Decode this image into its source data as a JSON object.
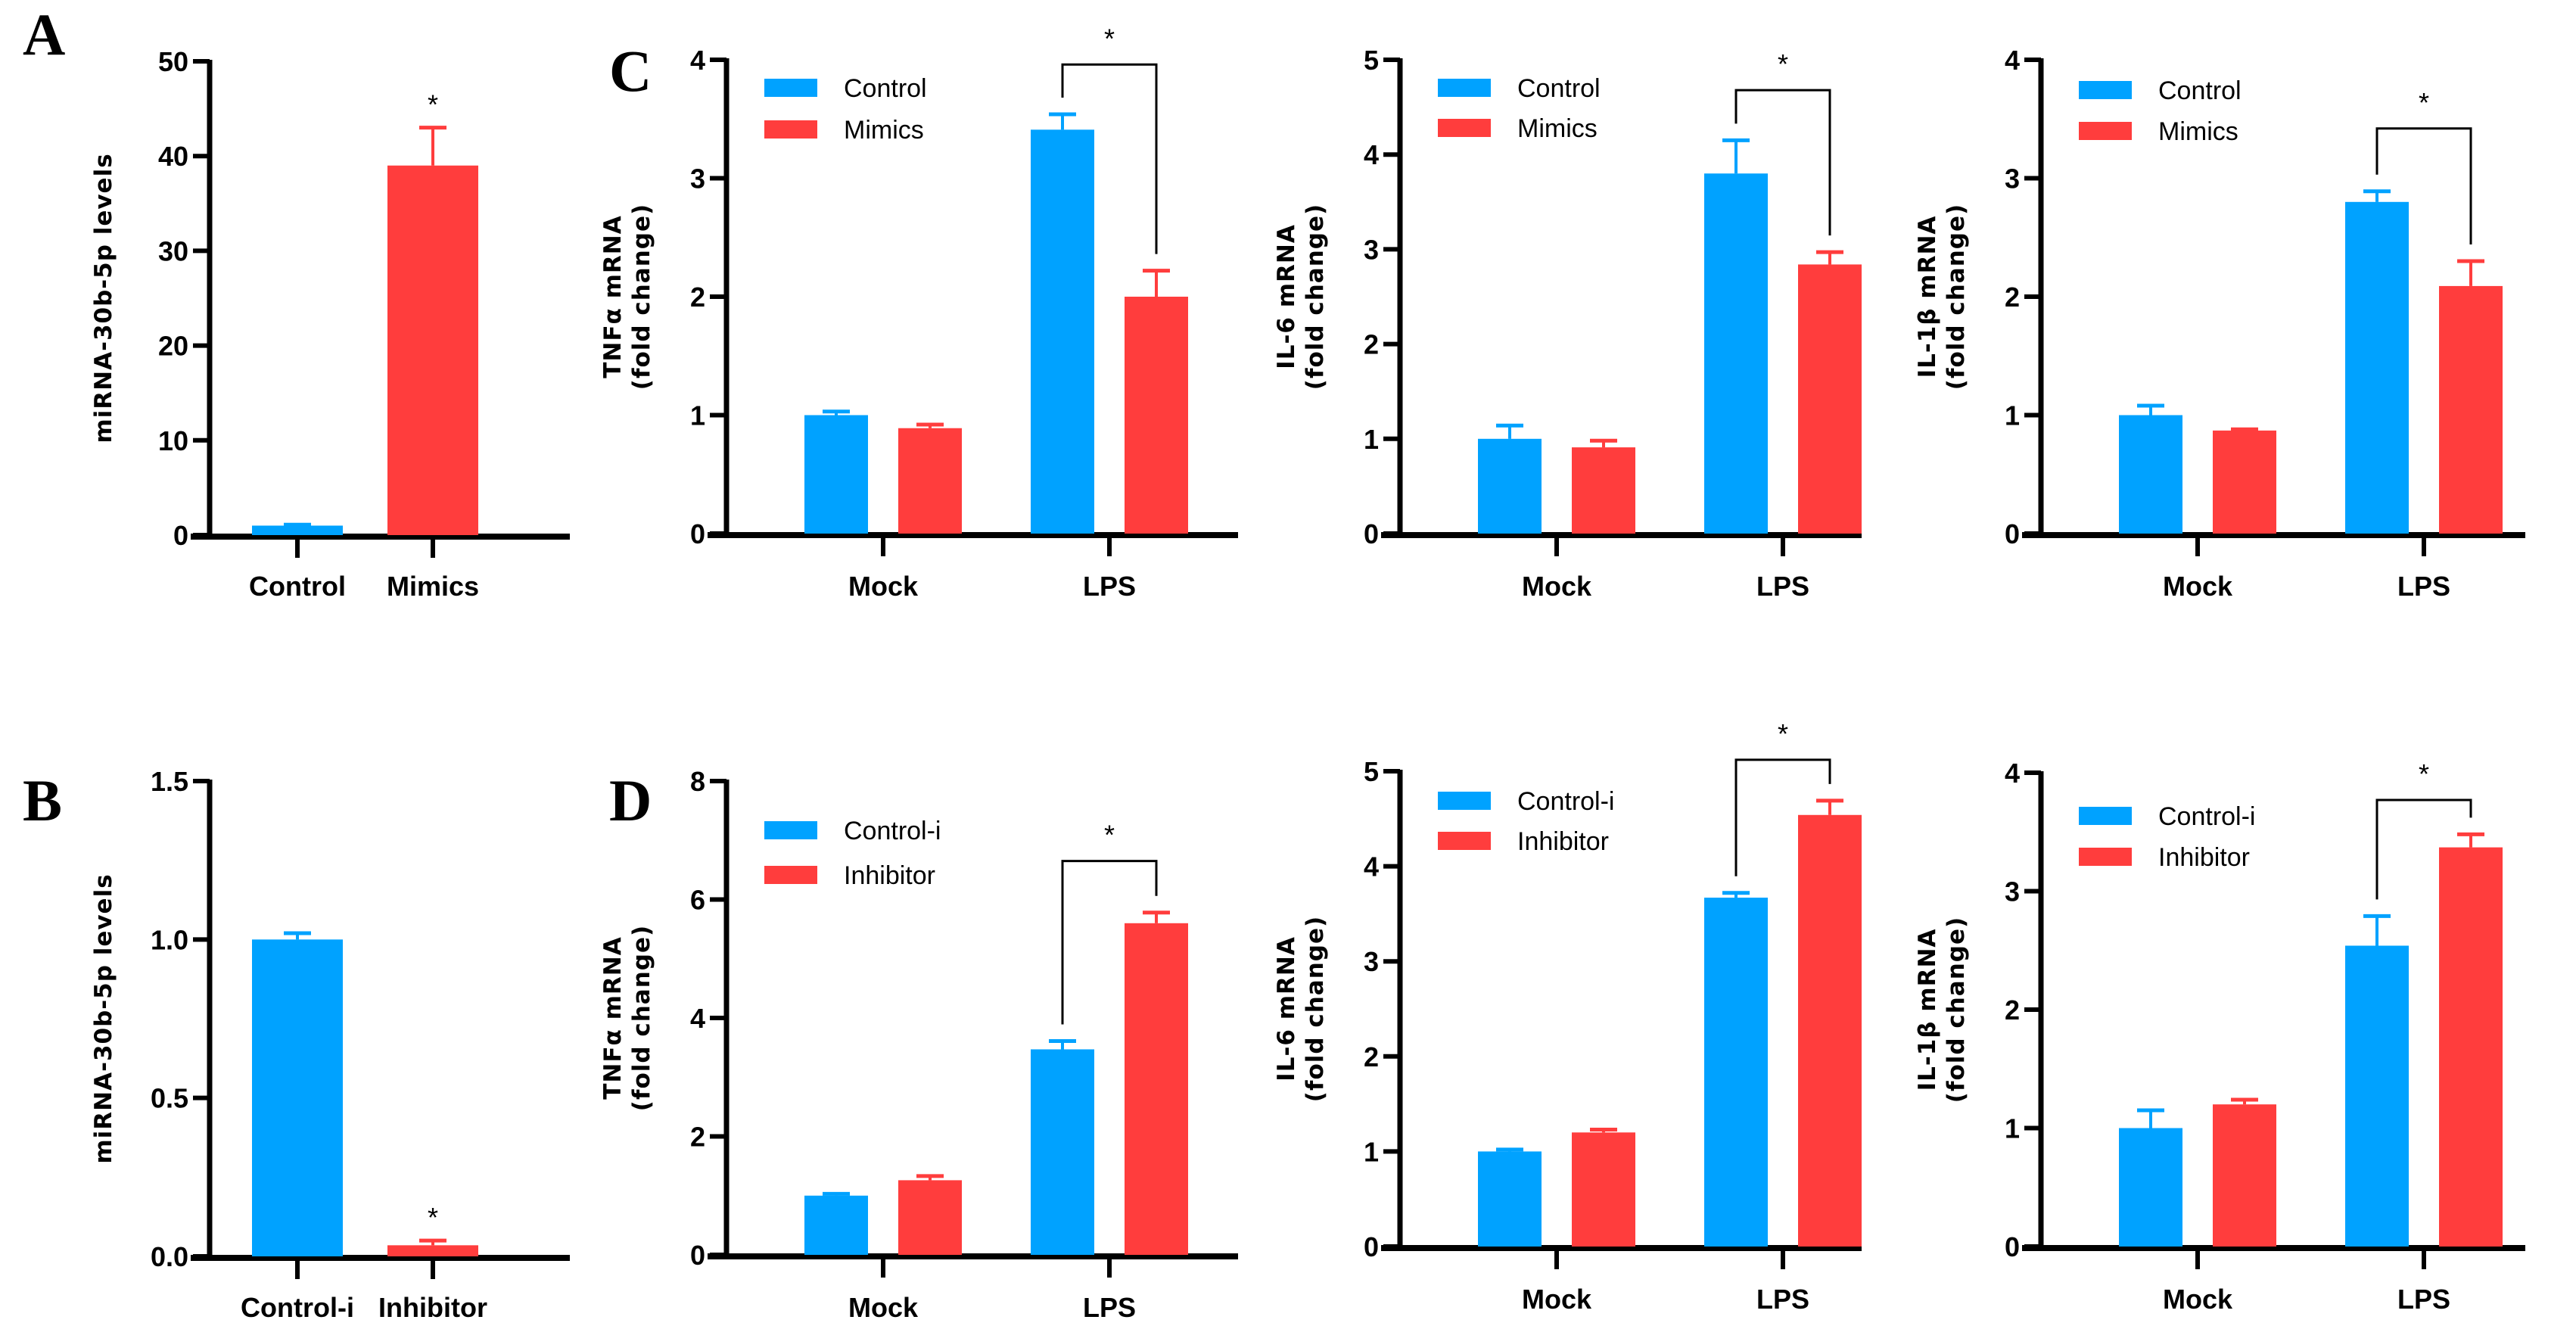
{
  "colors": {
    "control": "#00a2ff",
    "treatment": "#ff3d3d",
    "axis": "#000000"
  },
  "chart_data": [
    {
      "panel_letter": "A",
      "type": "bar",
      "ylabel": [
        "miRNA-30b-5p levels"
      ],
      "ylim": [
        0,
        50
      ],
      "yticks": [
        "0",
        "10",
        "20",
        "30",
        "40",
        "50"
      ],
      "ytick_values": [
        0,
        10,
        20,
        30,
        40,
        50
      ],
      "categories": [
        "Control",
        "Mimics"
      ],
      "values": [
        1.0,
        39.0
      ],
      "errors": [
        0.1,
        4.0
      ],
      "series_colors": [
        "control",
        "treatment"
      ],
      "stars": [
        {
          "category": 1,
          "text": "*"
        }
      ]
    },
    {
      "panel_letter": "C",
      "type": "bar",
      "ylabel": [
        "TNFα mRNA",
        "(fold change)"
      ],
      "ylim": [
        0,
        4
      ],
      "yticks": [
        "0",
        "1",
        "2",
        "3",
        "4"
      ],
      "ytick_values": [
        0,
        1,
        2,
        3,
        4
      ],
      "categories": [
        "Mock",
        "LPS"
      ],
      "legend": [
        "Control",
        "Mimics"
      ],
      "series": [
        {
          "name": "Control",
          "values": [
            1.0,
            3.41
          ],
          "errors": [
            0.03,
            0.13
          ]
        },
        {
          "name": "Mimics",
          "values": [
            0.89,
            2.0
          ],
          "errors": [
            0.03,
            0.22
          ]
        }
      ],
      "significance": {
        "group": 1,
        "bracket_y": 3.96,
        "text": "*"
      }
    },
    {
      "panel_letter": "",
      "type": "bar",
      "ylabel": [
        "IL-6 mRNA",
        "(fold change)"
      ],
      "ylim": [
        0,
        5
      ],
      "yticks": [
        "0",
        "1",
        "2",
        "3",
        "4",
        "5"
      ],
      "ytick_values": [
        0,
        1,
        2,
        3,
        4,
        5
      ],
      "categories": [
        "Mock",
        "LPS"
      ],
      "legend": [
        "Control",
        "Mimics"
      ],
      "series": [
        {
          "name": "Control",
          "values": [
            1.0,
            3.8
          ],
          "errors": [
            0.14,
            0.35
          ]
        },
        {
          "name": "Mimics",
          "values": [
            0.91,
            2.84
          ],
          "errors": [
            0.07,
            0.13
          ]
        }
      ],
      "significance": {
        "group": 1,
        "bracket_y": 4.68,
        "text": "*"
      }
    },
    {
      "panel_letter": "",
      "type": "bar",
      "ylabel": [
        "IL-1β mRNA",
        "(fold change)"
      ],
      "ylim": [
        0,
        4
      ],
      "yticks": [
        "0",
        "1",
        "2",
        "3",
        "4"
      ],
      "ytick_values": [
        0,
        1,
        2,
        3,
        4
      ],
      "categories": [
        "Mock",
        "LPS"
      ],
      "legend": [
        "Control",
        "Mimics"
      ],
      "series": [
        {
          "name": "Control",
          "values": [
            1.0,
            2.8
          ],
          "errors": [
            0.08,
            0.09
          ]
        },
        {
          "name": "Mimics",
          "values": [
            0.87,
            2.09
          ],
          "errors": [
            0.01,
            0.21
          ]
        }
      ],
      "significance": {
        "group": 1,
        "bracket_y": 3.42,
        "text": "*"
      }
    },
    {
      "panel_letter": "B",
      "type": "bar",
      "ylabel": [
        "miRNA-30b-5p levels"
      ],
      "ylim": [
        0,
        1.5
      ],
      "yticks": [
        "0.0",
        "0.5",
        "1.0",
        "1.5"
      ],
      "ytick_values": [
        0,
        0.5,
        1.0,
        1.5
      ],
      "categories": [
        "Control-i",
        "Inhibitor"
      ],
      "values": [
        1.0,
        0.035
      ],
      "errors": [
        0.02,
        0.015
      ],
      "series_colors": [
        "control",
        "treatment"
      ],
      "stars": [
        {
          "category": 1,
          "text": "*"
        }
      ]
    },
    {
      "panel_letter": "D",
      "type": "bar",
      "ylabel": [
        "TNFα mRNA",
        "(fold change)"
      ],
      "ylim": [
        0,
        8
      ],
      "yticks": [
        "0",
        "2",
        "4",
        "6",
        "8"
      ],
      "ytick_values": [
        0,
        2,
        4,
        6,
        8
      ],
      "categories": [
        "Mock",
        "LPS"
      ],
      "legend": [
        "Control-i",
        "Inhibitor"
      ],
      "series": [
        {
          "name": "Control-i",
          "values": [
            1.0,
            3.47
          ],
          "errors": [
            0.03,
            0.14
          ]
        },
        {
          "name": "Inhibitor",
          "values": [
            1.26,
            5.6
          ],
          "errors": [
            0.07,
            0.18
          ]
        }
      ],
      "significance": {
        "group": 1,
        "bracket_y": 6.65,
        "text": "*"
      }
    },
    {
      "panel_letter": "",
      "type": "bar",
      "ylabel": [
        "IL-6 mRNA",
        "(fold change)"
      ],
      "ylim": [
        0,
        5
      ],
      "yticks": [
        "0",
        "1",
        "2",
        "3",
        "4",
        "5"
      ],
      "ytick_values": [
        0,
        1,
        2,
        3,
        4,
        5
      ],
      "categories": [
        "Mock",
        "LPS"
      ],
      "legend": [
        "Control-i",
        "Inhibitor"
      ],
      "series": [
        {
          "name": "Control-i",
          "values": [
            1.0,
            3.67
          ],
          "errors": [
            0.02,
            0.05
          ]
        },
        {
          "name": "Inhibitor",
          "values": [
            1.2,
            4.54
          ],
          "errors": [
            0.03,
            0.15
          ]
        }
      ],
      "significance": {
        "group": 1,
        "bracket_y": 5.12,
        "text": "*"
      }
    },
    {
      "panel_letter": "",
      "type": "bar",
      "ylabel": [
        "IL-1β mRNA",
        "(fold change)"
      ],
      "ylim": [
        0,
        4
      ],
      "yticks": [
        "0",
        "1",
        "2",
        "3",
        "4"
      ],
      "ytick_values": [
        0,
        1,
        2,
        3,
        4
      ],
      "categories": [
        "Mock",
        "LPS"
      ],
      "legend": [
        "Control-i",
        "Inhibitor"
      ],
      "series": [
        {
          "name": "Control-i",
          "values": [
            1.0,
            2.54
          ],
          "errors": [
            0.15,
            0.25
          ]
        },
        {
          "name": "Inhibitor",
          "values": [
            1.2,
            3.37
          ],
          "errors": [
            0.04,
            0.11
          ]
        }
      ],
      "significance": {
        "group": 1,
        "bracket_y": 3.77,
        "text": "*"
      }
    }
  ]
}
